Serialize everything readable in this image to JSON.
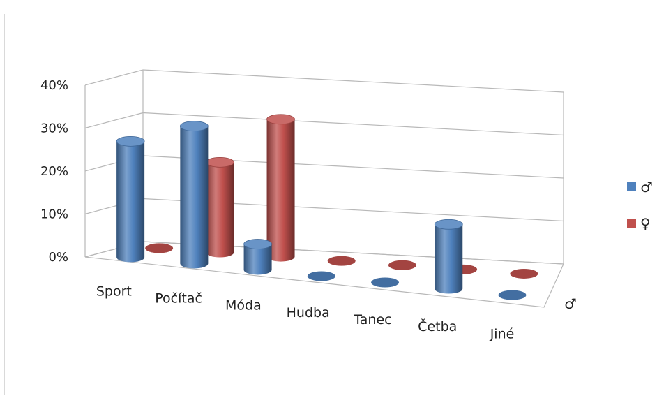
{
  "chart_data": {
    "type": "bar",
    "categories": [
      "Sport",
      "Počítač",
      "Móda",
      "Hudba",
      "Tanec",
      "Četba",
      "Jiné"
    ],
    "series": [
      {
        "name": "♂",
        "values": [
          27,
          32,
          6,
          0,
          0,
          15,
          0
        ],
        "color": "#4f81bd"
      },
      {
        "name": "♀",
        "values": [
          0,
          21,
          32,
          0,
          0,
          0,
          0
        ],
        "color": "#c0504d"
      }
    ],
    "y_ticks": [
      "0%",
      "10%",
      "20%",
      "30%",
      "40%"
    ],
    "ylim": [
      0,
      40
    ],
    "depth_axis_label": "♂",
    "grid": true,
    "legend_position": "right",
    "title": "",
    "xlabel": "",
    "ylabel": ""
  }
}
